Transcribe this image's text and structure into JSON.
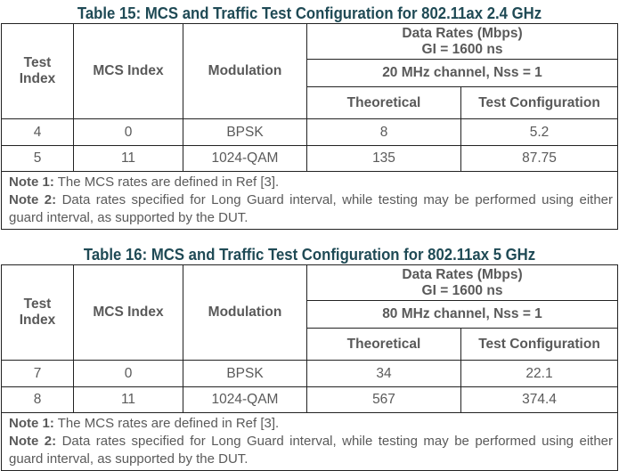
{
  "tables": [
    {
      "title": "Table 15: MCS and Traffic Test Configuration for 802.11ax 2.4 GHz",
      "headers": {
        "test_index": "Test Index",
        "mcs_index": "MCS Index",
        "modulation": "Modulation",
        "data_rates": "Data Rates (Mbps)",
        "gi": "GI = 1600 ns",
        "channel": "20 MHz channel, Nss = 1",
        "theoretical": "Theoretical",
        "test_configuration": "Test Configuration"
      },
      "rows": [
        [
          "4",
          "0",
          "BPSK",
          "8",
          "5.2"
        ],
        [
          "5",
          "11",
          "1024-QAM",
          "135",
          "87.75"
        ]
      ],
      "notes": [
        {
          "label": "Note 1:",
          "text": " The MCS rates are defined in Ref [3]."
        },
        {
          "label": "Note 2:",
          "text": " Data rates specified for Long Guard interval, while testing may be performed using either guard interval, as supported by the DUT."
        }
      ]
    },
    {
      "title": "Table 16: MCS and Traffic Test Configuration for 802.11ax 5 GHz",
      "headers": {
        "test_index": "Test Index",
        "mcs_index": "MCS Index",
        "modulation": "Modulation",
        "data_rates": "Data Rates (Mbps)",
        "gi": "GI = 1600 ns",
        "channel": "80 MHz channel, Nss = 1",
        "theoretical": "Theoretical",
        "test_configuration": "Test Configuration"
      },
      "rows": [
        [
          "7",
          "0",
          "BPSK",
          "34",
          "22.1"
        ],
        [
          "8",
          "11",
          "1024-QAM",
          "567",
          "374.4"
        ]
      ],
      "notes": [
        {
          "label": "Note 1:",
          "text": " The MCS rates are defined in Ref [3]."
        },
        {
          "label": "Note 2:",
          "text": " Data rates specified for Long Guard interval, while testing may be performed using either guard interval, as supported by the DUT."
        }
      ]
    }
  ]
}
